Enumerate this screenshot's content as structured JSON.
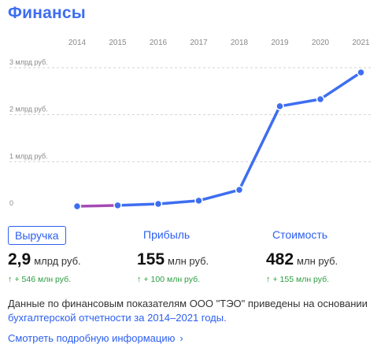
{
  "title": "Финансы",
  "chart_data": {
    "type": "line",
    "categories": [
      "2014",
      "2015",
      "2016",
      "2017",
      "2018",
      "2019",
      "2020",
      "2021"
    ],
    "values": [
      0.05,
      0.07,
      0.1,
      0.17,
      0.4,
      2.18,
      2.33,
      2.9
    ],
    "yticks": [
      {
        "value": 0,
        "label": "0"
      },
      {
        "value": 1,
        "label": "1 млрд руб."
      },
      {
        "value": 2,
        "label": "2 млрд руб."
      },
      {
        "value": 3,
        "label": "3 млрд руб."
      }
    ],
    "ylim": [
      0,
      3
    ],
    "grid": true,
    "line_color": "#3d6ef0",
    "highlight_color": "#a44bb5",
    "point_color": "#3d6ef0"
  },
  "tabs": [
    {
      "label": "Выручка",
      "active": true
    },
    {
      "label": "Прибыль",
      "active": false
    },
    {
      "label": "Стоимость",
      "active": false
    }
  ],
  "metrics": [
    {
      "value": "2,9",
      "unit": "млрд руб.",
      "delta": "+ 546 млн руб."
    },
    {
      "value": "155",
      "unit": "млн руб.",
      "delta": "+ 100 млн руб."
    },
    {
      "value": "482",
      "unit": "млн руб.",
      "delta": "+ 155 млн руб."
    }
  ],
  "delta_arrow": "↑",
  "note": {
    "text": "Данные по финансовым показателям ООО \"ТЭО\" приведены на основании ",
    "link": "бухгалтерской отчетности за 2014–2021 годы."
  },
  "more_link": "Смотреть подробную информацию",
  "more_chevron": "›"
}
